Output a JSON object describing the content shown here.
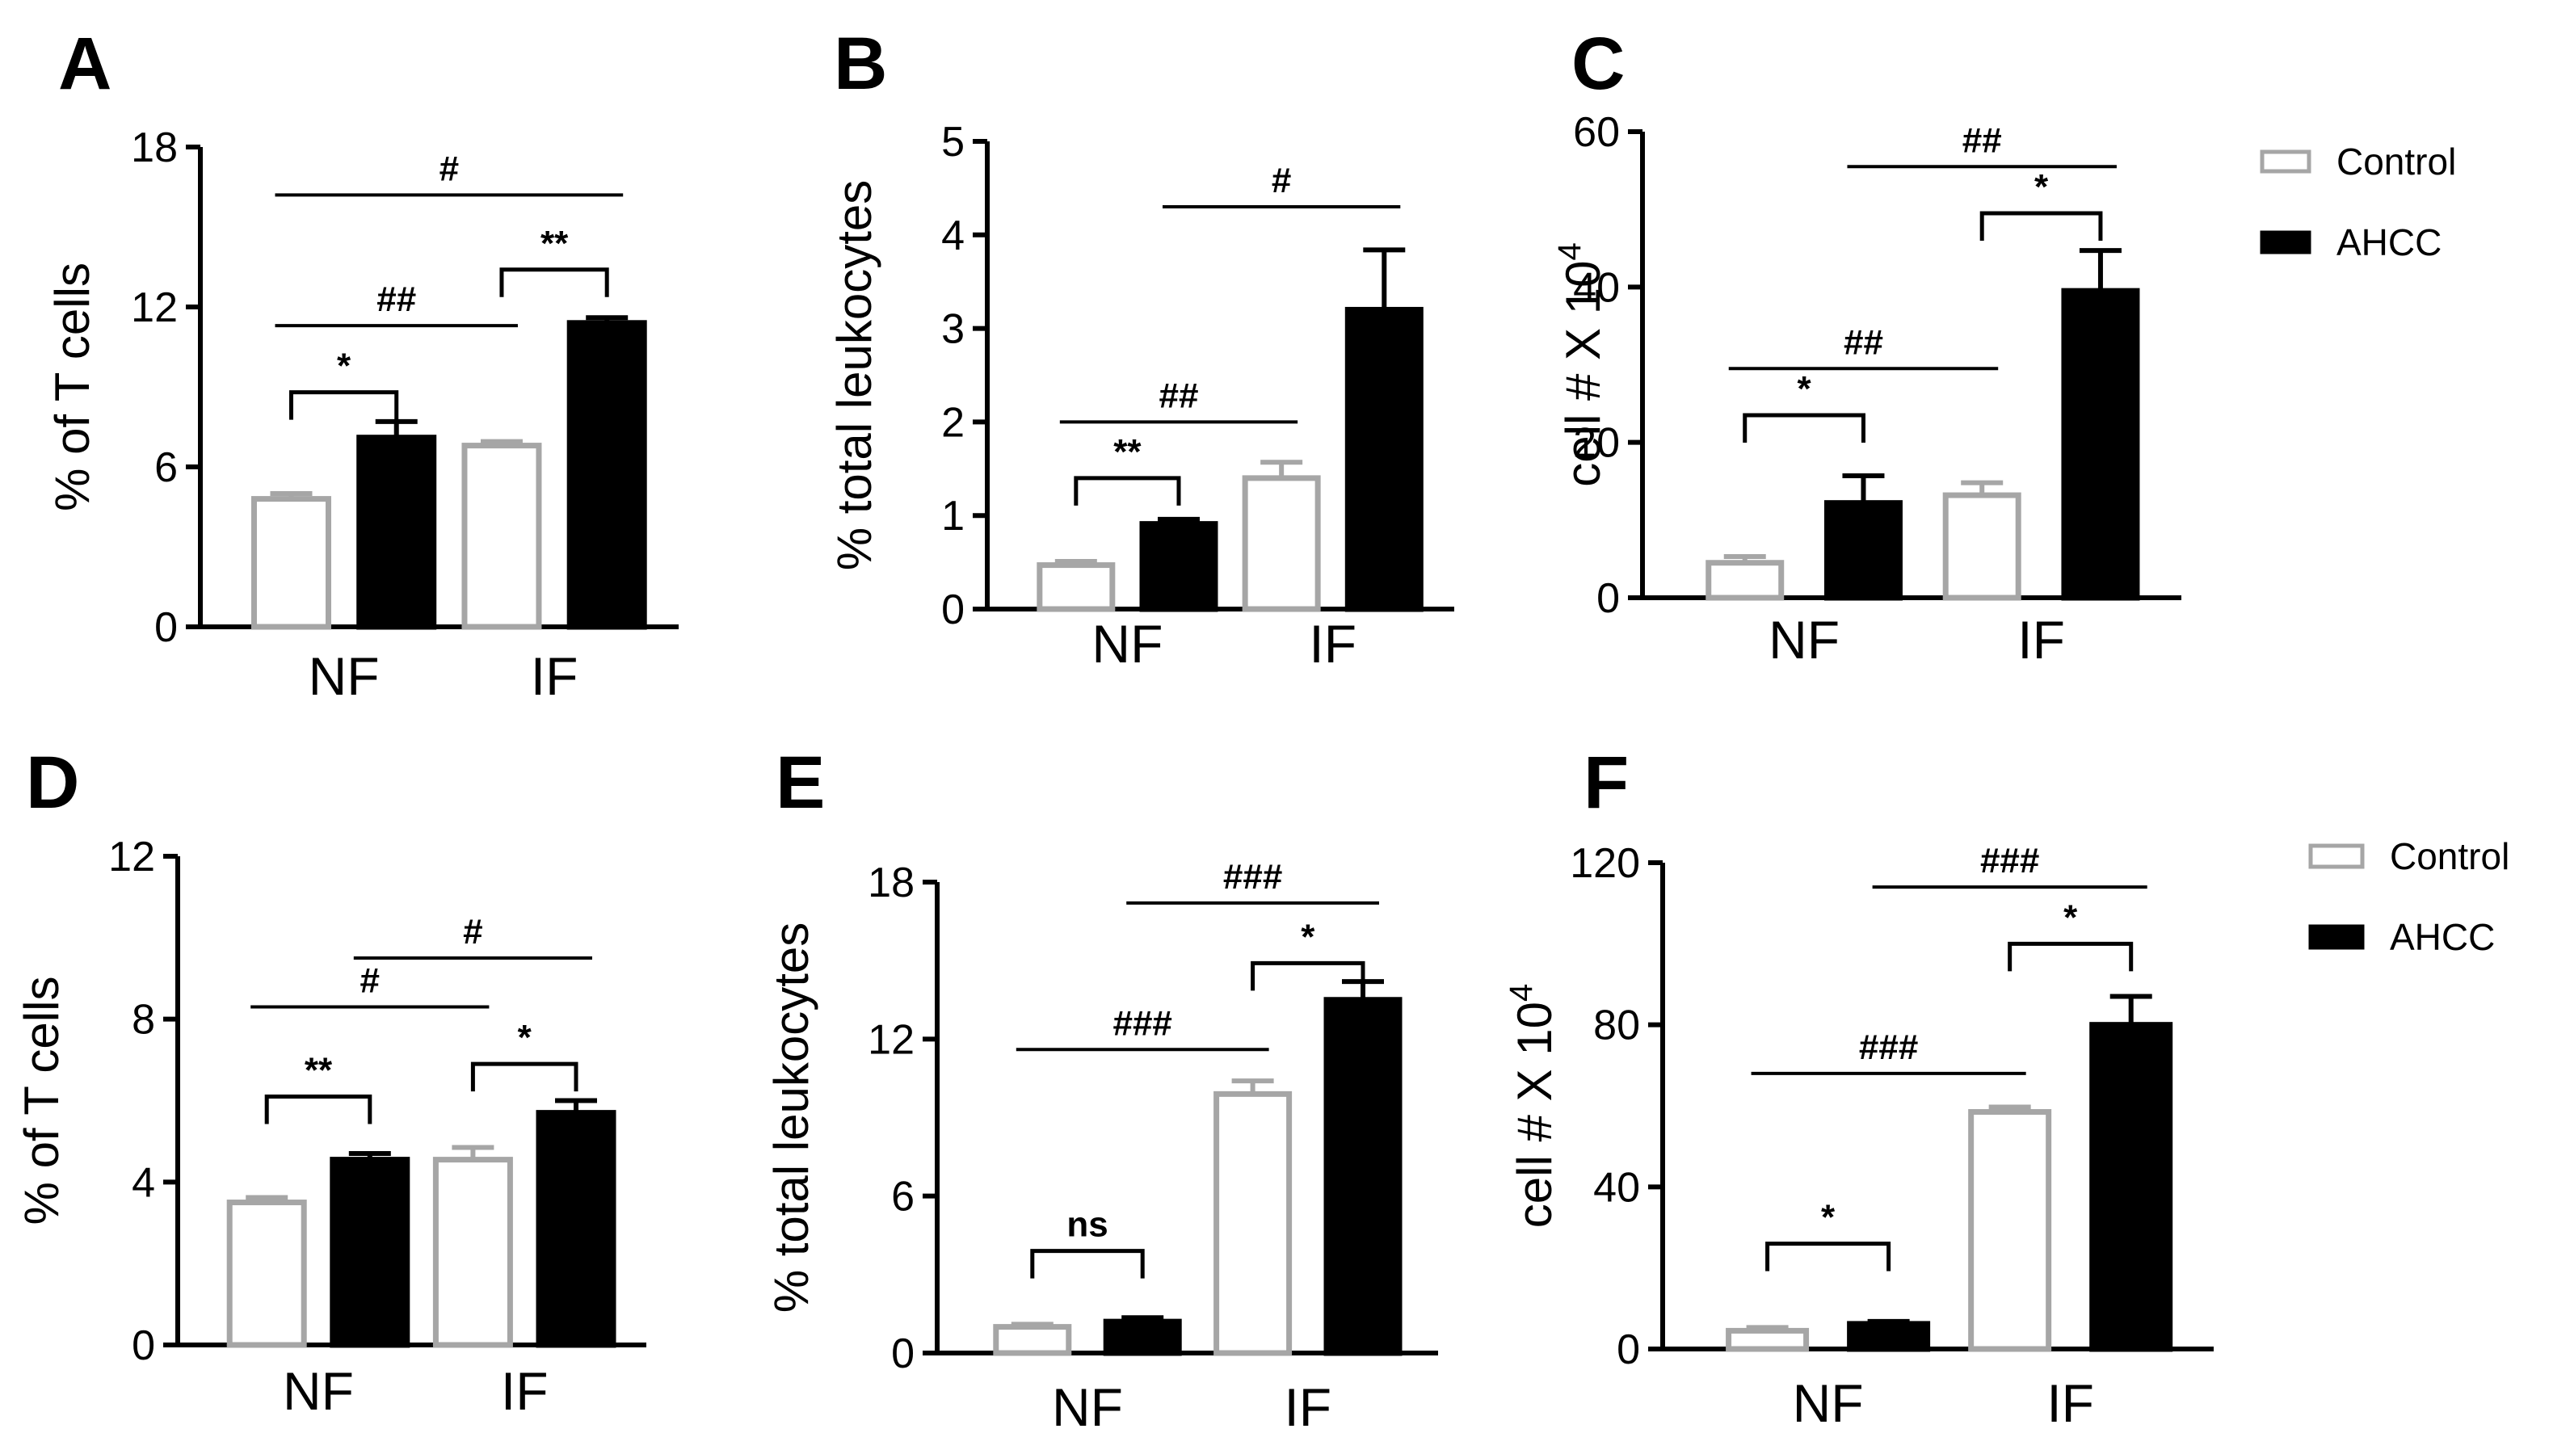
{
  "figure": {
    "legends": [
      {
        "entries": [
          {
            "label": "Control",
            "color": "#ffffff"
          },
          {
            "label": "AHCC",
            "color": "#000000"
          }
        ]
      },
      {
        "entries": [
          {
            "label": "Control",
            "color": "#ffffff"
          },
          {
            "label": "AHCC",
            "color": "#000000"
          }
        ]
      }
    ]
  },
  "chart_data": [
    {
      "panel": "A",
      "type": "bar",
      "categories": [
        "NF",
        "IF"
      ],
      "series": [
        {
          "name": "Control",
          "values": [
            4.8,
            6.8
          ],
          "errors": [
            0.2,
            0.15
          ]
        },
        {
          "name": "AHCC",
          "values": [
            7.1,
            11.4
          ],
          "errors": [
            0.6,
            0.2
          ]
        }
      ],
      "ylabel": "% of T cells",
      "ylim": [
        0,
        18
      ],
      "yticks": [
        0,
        6,
        12,
        18
      ],
      "significance": [
        {
          "label": "*",
          "from": [
            0,
            0
          ],
          "to": [
            0,
            1
          ],
          "y": 8.8,
          "bracket": true
        },
        {
          "label": "**",
          "from": [
            1,
            0
          ],
          "to": [
            1,
            1
          ],
          "y": 13.4,
          "bracket": true
        },
        {
          "label": "##",
          "from": [
            0,
            0
          ],
          "to": [
            1,
            0
          ],
          "y": 11.3,
          "bracket": false
        },
        {
          "label": "#",
          "from": [
            0,
            0
          ],
          "to": [
            1,
            1
          ],
          "y": 16.2,
          "bracket": false
        }
      ]
    },
    {
      "panel": "B",
      "type": "bar",
      "categories": [
        "NF",
        "IF"
      ],
      "series": [
        {
          "name": "Control",
          "values": [
            0.47,
            1.4
          ],
          "errors": [
            0.04,
            0.17
          ]
        },
        {
          "name": "AHCC",
          "values": [
            0.91,
            3.2
          ],
          "errors": [
            0.05,
            0.64
          ]
        }
      ],
      "ylabel": "% total leukocytes",
      "ylim": [
        0,
        5
      ],
      "yticks": [
        0,
        1,
        2,
        3,
        4,
        5
      ],
      "significance": [
        {
          "label": "**",
          "from": [
            0,
            0
          ],
          "to": [
            0,
            1
          ],
          "y": 1.4,
          "bracket": true
        },
        {
          "label": "##",
          "from": [
            0,
            0
          ],
          "to": [
            1,
            0
          ],
          "y": 2.0,
          "bracket": false
        },
        {
          "label": "#",
          "from": [
            0,
            1
          ],
          "to": [
            1,
            1
          ],
          "y": 4.3,
          "bracket": false
        }
      ]
    },
    {
      "panel": "C",
      "type": "bar",
      "categories": [
        "NF",
        "IF"
      ],
      "series": [
        {
          "name": "Control",
          "values": [
            4.5,
            13.2
          ],
          "errors": [
            0.8,
            1.6
          ]
        },
        {
          "name": "AHCC",
          "values": [
            12.2,
            39.5
          ],
          "errors": [
            3.5,
            5.2
          ]
        }
      ],
      "ylabel": "cell # X 10",
      "ylabel_sup": "4",
      "ylim": [
        0,
        60
      ],
      "yticks": [
        0,
        20,
        40,
        60
      ],
      "significance": [
        {
          "label": "*",
          "from": [
            0,
            0
          ],
          "to": [
            0,
            1
          ],
          "y": 23.5,
          "bracket": true
        },
        {
          "label": "##",
          "from": [
            0,
            0
          ],
          "to": [
            1,
            0
          ],
          "y": 29.5,
          "bracket": false
        },
        {
          "label": "*",
          "from": [
            1,
            0
          ],
          "to": [
            1,
            1
          ],
          "y": 49.5,
          "bracket": true
        },
        {
          "label": "##",
          "from": [
            0,
            1
          ],
          "to": [
            1,
            1
          ],
          "y": 55.5,
          "bracket": false
        }
      ]
    },
    {
      "panel": "D",
      "type": "bar",
      "categories": [
        "NF",
        "IF"
      ],
      "series": [
        {
          "name": "Control",
          "values": [
            3.5,
            4.55
          ],
          "errors": [
            0.12,
            0.3
          ]
        },
        {
          "name": "AHCC",
          "values": [
            4.55,
            5.7
          ],
          "errors": [
            0.15,
            0.3
          ]
        }
      ],
      "ylabel": "% of T cells",
      "ylim": [
        0,
        12
      ],
      "yticks": [
        0,
        4,
        8,
        12
      ],
      "significance": [
        {
          "label": "**",
          "from": [
            0,
            0
          ],
          "to": [
            0,
            1
          ],
          "y": 6.1,
          "bracket": true
        },
        {
          "label": "*",
          "from": [
            1,
            0
          ],
          "to": [
            1,
            1
          ],
          "y": 6.9,
          "bracket": true
        },
        {
          "label": "#",
          "from": [
            0,
            0
          ],
          "to": [
            1,
            0
          ],
          "y": 8.3,
          "bracket": false
        },
        {
          "label": "#",
          "from": [
            0,
            1
          ],
          "to": [
            1,
            1
          ],
          "y": 9.5,
          "bracket": false
        }
      ]
    },
    {
      "panel": "E",
      "type": "bar",
      "categories": [
        "NF",
        "IF"
      ],
      "series": [
        {
          "name": "Control",
          "values": [
            1.0,
            9.9
          ],
          "errors": [
            0.1,
            0.5
          ]
        },
        {
          "name": "AHCC",
          "values": [
            1.2,
            13.5
          ],
          "errors": [
            0.15,
            0.7
          ]
        }
      ],
      "ylabel": "% total leukocytes",
      "ylim": [
        0,
        18
      ],
      "yticks": [
        0,
        6,
        12,
        18
      ],
      "significance": [
        {
          "label": "ns",
          "from": [
            0,
            0
          ],
          "to": [
            0,
            1
          ],
          "y": 3.9,
          "bracket": true
        },
        {
          "label": "###",
          "from": [
            0,
            0
          ],
          "to": [
            1,
            0
          ],
          "y": 11.6,
          "bracket": false
        },
        {
          "label": "*",
          "from": [
            1,
            0
          ],
          "to": [
            1,
            1
          ],
          "y": 14.9,
          "bracket": true
        },
        {
          "label": "###",
          "from": [
            0,
            1
          ],
          "to": [
            1,
            1
          ],
          "y": 17.2,
          "bracket": false
        }
      ]
    },
    {
      "panel": "F",
      "type": "bar",
      "categories": [
        "NF",
        "IF"
      ],
      "series": [
        {
          "name": "Control",
          "values": [
            4.5,
            58.5
          ],
          "errors": [
            0.8,
            1.2
          ]
        },
        {
          "name": "AHCC",
          "values": [
            6.2,
            80.0
          ],
          "errors": [
            0.6,
            7.0
          ]
        }
      ],
      "ylabel": "cell # X 10",
      "ylabel_sup": "4",
      "ylim": [
        0,
        120
      ],
      "yticks": [
        0,
        40,
        80,
        120
      ],
      "significance": [
        {
          "label": "*",
          "from": [
            0,
            0
          ],
          "to": [
            0,
            1
          ],
          "y": 26.0,
          "bracket": true
        },
        {
          "label": "###",
          "from": [
            0,
            0
          ],
          "to": [
            1,
            0
          ],
          "y": 68.0,
          "bracket": false
        },
        {
          "label": "*",
          "from": [
            1,
            0
          ],
          "to": [
            1,
            1
          ],
          "y": 100.0,
          "bracket": true
        },
        {
          "label": "###",
          "from": [
            0,
            1
          ],
          "to": [
            1,
            1
          ],
          "y": 114.0,
          "bracket": false
        }
      ]
    }
  ]
}
